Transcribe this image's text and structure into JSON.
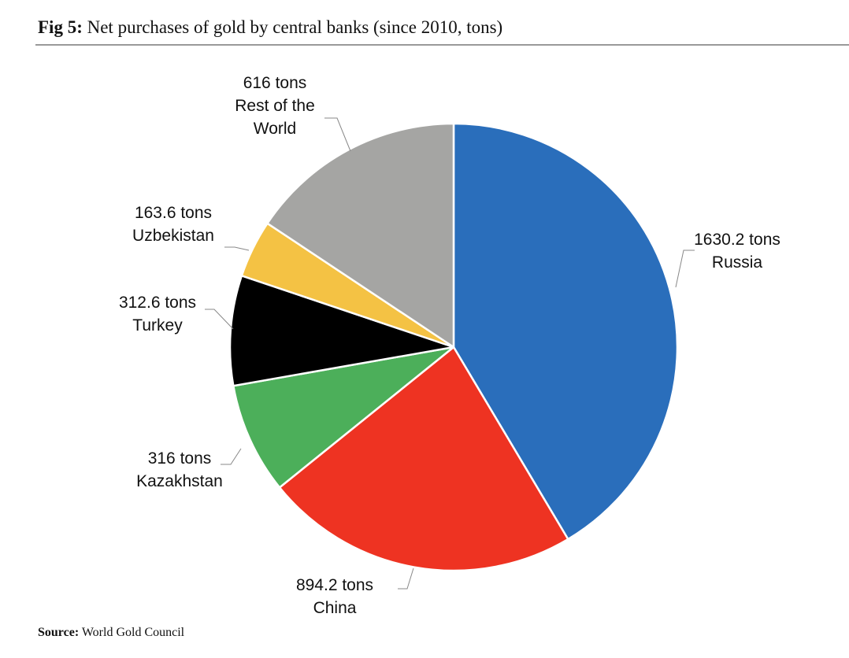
{
  "chart_data": {
    "type": "pie",
    "title_label": "Fig 5:",
    "title": "Net purchases of gold by central banks (since 2010, tons)",
    "source_label": "Source:",
    "source": "World Gold Council",
    "categories": [
      "Russia",
      "China",
      "Kazakhstan",
      "Turkey",
      "Uzbekistan",
      "Rest of the World"
    ],
    "values": [
      1630.2,
      894.2,
      316,
      312.6,
      163.6,
      616
    ],
    "value_labels": [
      "1630.2 tons",
      "894.2 tons",
      "316 tons",
      "312.6 tons",
      "163.6 tons",
      "616 tons"
    ],
    "colors": [
      "#2a6ebb",
      "#ee3322",
      "#4caf5a",
      "#000000",
      "#f4c244",
      "#a5a5a3"
    ]
  }
}
